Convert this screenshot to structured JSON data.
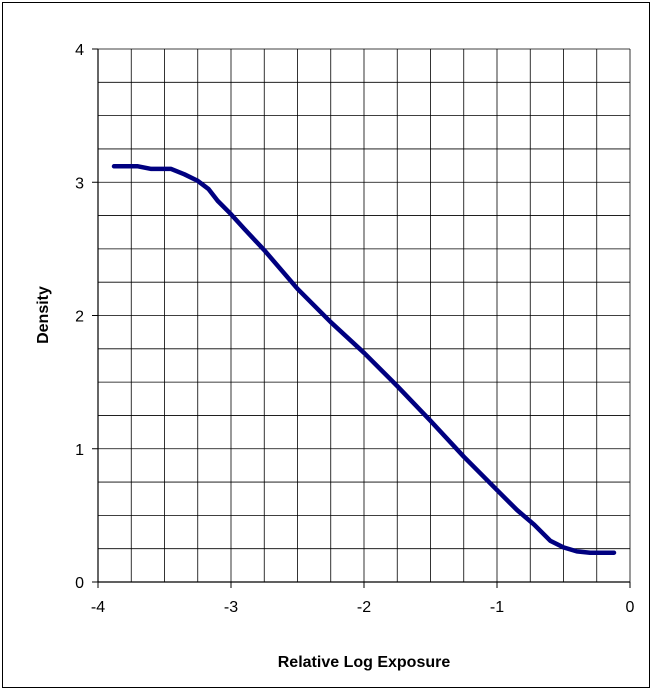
{
  "chart_data": {
    "type": "line",
    "title": "",
    "xlabel": "Relative Log Exposure",
    "ylabel": "Density",
    "xlim": [
      -4,
      0
    ],
    "ylim": [
      0,
      4
    ],
    "x_ticks": [
      -4,
      -3,
      -2,
      -1,
      0
    ],
    "y_ticks": [
      0,
      1,
      2,
      3,
      4
    ],
    "x_tick_labels": [
      "-4",
      "-3",
      "-2",
      "-1",
      "0"
    ],
    "y_tick_labels": [
      "0",
      "1",
      "2",
      "3",
      "4"
    ],
    "grid": true,
    "x_minor_step": 0.25,
    "y_minor_step": 0.25,
    "series": [
      {
        "color": "#000080",
        "x": [
          -3.88,
          -3.7,
          -3.6,
          -3.45,
          -3.35,
          -3.25,
          -3.17,
          -3.1,
          -3.0,
          -2.9,
          -2.75,
          -2.5,
          -2.25,
          -2.0,
          -1.75,
          -1.5,
          -1.25,
          -1.0,
          -0.85,
          -0.72,
          -0.6,
          -0.5,
          -0.4,
          -0.3,
          -0.2,
          -0.12
        ],
        "y": [
          3.12,
          3.12,
          3.1,
          3.1,
          3.06,
          3.01,
          2.95,
          2.86,
          2.76,
          2.65,
          2.49,
          2.2,
          1.95,
          1.72,
          1.47,
          1.21,
          0.94,
          0.69,
          0.54,
          0.43,
          0.31,
          0.26,
          0.23,
          0.22,
          0.22,
          0.22
        ]
      }
    ]
  }
}
